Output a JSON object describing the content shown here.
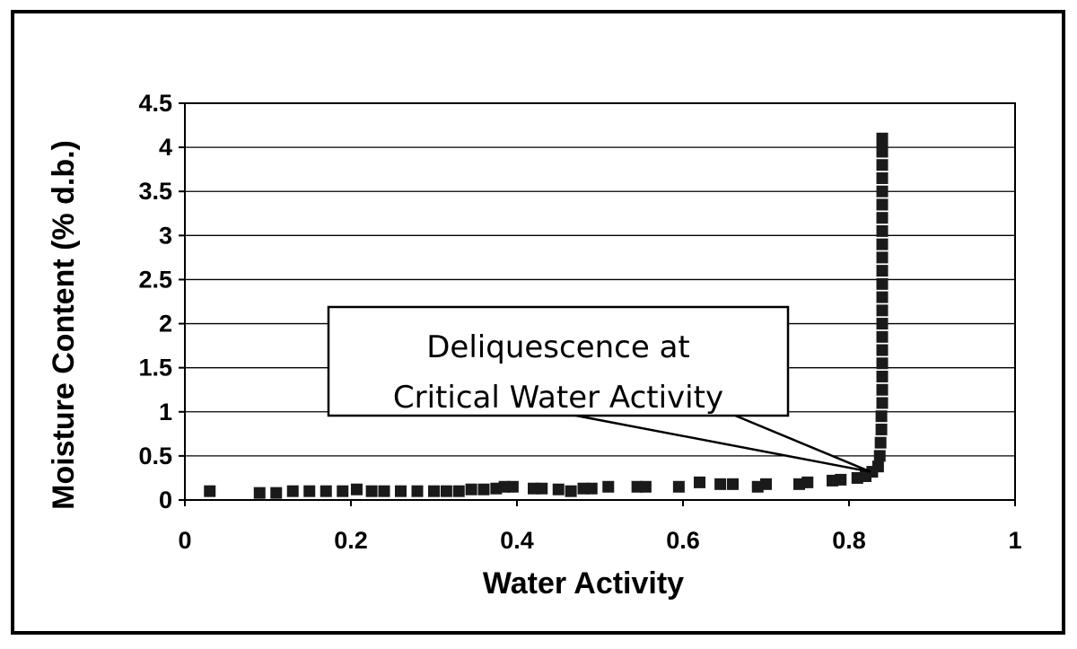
{
  "chart_data": {
    "type": "scatter",
    "title": "",
    "xlabel": "Water Activity",
    "ylabel": "Moisture Content  (% d.b.)",
    "xlim": [
      0,
      1
    ],
    "ylim": [
      0,
      4.5
    ],
    "xticks": [
      "0",
      "0.2",
      "0.4",
      "0.6",
      "0.8",
      "1"
    ],
    "yticks": [
      "0",
      "0.5",
      "1",
      "1.5",
      "2",
      "2.5",
      "3",
      "3.5",
      "4",
      "4.5"
    ],
    "grid": "horizontal",
    "annotation": {
      "lines": [
        "Deliquescence at",
        "Critical Water Activity"
      ],
      "target": [
        0.828,
        0.32
      ]
    },
    "series": [
      {
        "marker": "square",
        "color": "#1a1a1a",
        "points": [
          [
            0.03,
            0.1
          ],
          [
            0.09,
            0.08
          ],
          [
            0.11,
            0.08
          ],
          [
            0.13,
            0.1
          ],
          [
            0.15,
            0.1
          ],
          [
            0.17,
            0.1
          ],
          [
            0.19,
            0.1
          ],
          [
            0.207,
            0.12
          ],
          [
            0.225,
            0.1
          ],
          [
            0.24,
            0.1
          ],
          [
            0.26,
            0.1
          ],
          [
            0.28,
            0.1
          ],
          [
            0.3,
            0.1
          ],
          [
            0.315,
            0.1
          ],
          [
            0.33,
            0.1
          ],
          [
            0.345,
            0.12
          ],
          [
            0.36,
            0.12
          ],
          [
            0.375,
            0.13
          ],
          [
            0.385,
            0.15
          ],
          [
            0.395,
            0.15
          ],
          [
            0.42,
            0.13
          ],
          [
            0.43,
            0.13
          ],
          [
            0.45,
            0.12
          ],
          [
            0.465,
            0.1
          ],
          [
            0.48,
            0.13
          ],
          [
            0.49,
            0.13
          ],
          [
            0.51,
            0.15
          ],
          [
            0.545,
            0.15
          ],
          [
            0.555,
            0.15
          ],
          [
            0.595,
            0.15
          ],
          [
            0.62,
            0.2
          ],
          [
            0.645,
            0.18
          ],
          [
            0.66,
            0.18
          ],
          [
            0.69,
            0.15
          ],
          [
            0.7,
            0.18
          ],
          [
            0.74,
            0.18
          ],
          [
            0.75,
            0.2
          ],
          [
            0.78,
            0.22
          ],
          [
            0.79,
            0.23
          ],
          [
            0.81,
            0.25
          ],
          [
            0.82,
            0.27
          ],
          [
            0.828,
            0.32
          ],
          [
            0.835,
            0.38
          ],
          [
            0.837,
            0.5
          ],
          [
            0.838,
            0.65
          ],
          [
            0.839,
            0.8
          ],
          [
            0.839,
            0.95
          ],
          [
            0.84,
            1.1
          ],
          [
            0.84,
            1.25
          ],
          [
            0.84,
            1.4
          ],
          [
            0.84,
            1.55
          ],
          [
            0.84,
            1.7
          ],
          [
            0.84,
            1.85
          ],
          [
            0.84,
            2.0
          ],
          [
            0.84,
            2.15
          ],
          [
            0.84,
            2.3
          ],
          [
            0.84,
            2.45
          ],
          [
            0.84,
            2.6
          ],
          [
            0.84,
            2.75
          ],
          [
            0.84,
            2.9
          ],
          [
            0.84,
            3.05
          ],
          [
            0.84,
            3.2
          ],
          [
            0.84,
            3.35
          ],
          [
            0.84,
            3.5
          ],
          [
            0.84,
            3.65
          ],
          [
            0.84,
            3.8
          ],
          [
            0.84,
            3.95
          ],
          [
            0.84,
            4.05
          ],
          [
            0.84,
            4.1
          ]
        ]
      }
    ]
  }
}
